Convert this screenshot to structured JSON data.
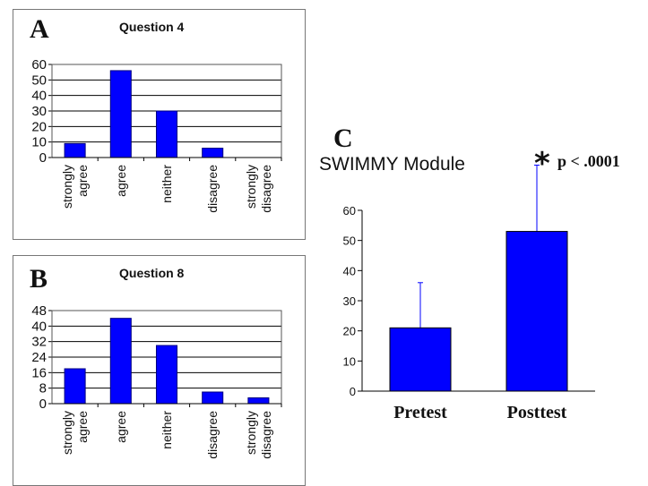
{
  "chart_data": [
    {
      "type": "bar",
      "panel_label": "A",
      "title": "Question 4",
      "categories": [
        "strongly agree",
        "agree",
        "neither",
        "disagree",
        "strongly disagree"
      ],
      "category_lines": [
        [
          "strongly",
          "agree"
        ],
        [
          "agree"
        ],
        [
          "neither"
        ],
        [
          "disagree"
        ],
        [
          "strongly",
          "disagree"
        ]
      ],
      "values": [
        9,
        56,
        30,
        6,
        0
      ],
      "ylim": [
        0,
        60
      ],
      "yticks": [
        0,
        10,
        20,
        30,
        40,
        50,
        60
      ],
      "grid": true,
      "bar_color": "#0000ff"
    },
    {
      "type": "bar",
      "panel_label": "B",
      "title": "Question 8",
      "categories": [
        "strongly agree",
        "agree",
        "neither",
        "disagree",
        "strongly disagree"
      ],
      "category_lines": [
        [
          "strongly",
          "agree"
        ],
        [
          "agree"
        ],
        [
          "neither"
        ],
        [
          "disagree"
        ],
        [
          "strongly",
          "disagree"
        ]
      ],
      "values": [
        18,
        44,
        30,
        6,
        3
      ],
      "ylim": [
        0,
        48
      ],
      "yticks": [
        0,
        8,
        16,
        24,
        32,
        40,
        48
      ],
      "grid": true,
      "bar_color": "#0000ff"
    },
    {
      "type": "bar",
      "panel_label": "C",
      "title": "SWIMMY Module",
      "categories": [
        "Pretest",
        "Posttest"
      ],
      "values": [
        21,
        53
      ],
      "error_plus": [
        15,
        22
      ],
      "ylim": [
        0,
        60
      ],
      "yticks": [
        0,
        10,
        20,
        30,
        40,
        50,
        60
      ],
      "grid": false,
      "bar_color": "#0000ff",
      "annotation": {
        "symbol": "*",
        "text": "p < .0001"
      }
    }
  ]
}
